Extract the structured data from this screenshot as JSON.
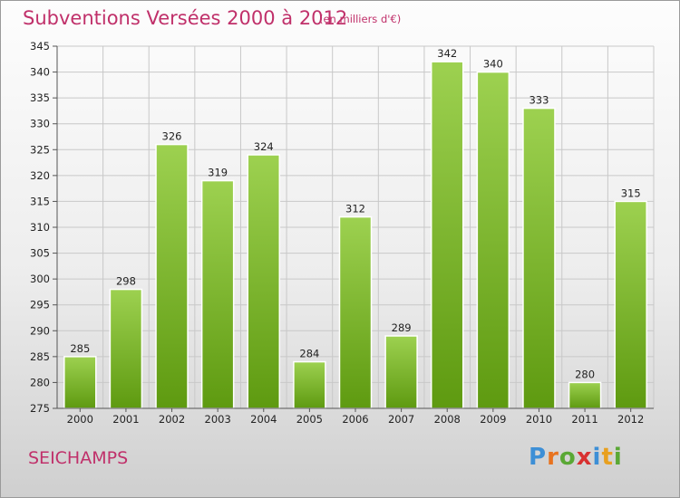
{
  "header": {
    "title": "Subventions Versées 2000 à 2012",
    "unit_note": "(en milliers d'€)"
  },
  "footer": {
    "commune": "SEICHAMPS",
    "brand_letters": [
      {
        "char": "P",
        "color": "#3d8fd6"
      },
      {
        "char": "r",
        "color": "#e8731f"
      },
      {
        "char": "o",
        "color": "#5aa835"
      },
      {
        "char": "x",
        "color": "#d83030"
      },
      {
        "char": "i",
        "color": "#3d8fd6"
      },
      {
        "char": "t",
        "color": "#e8a01f"
      },
      {
        "char": "i",
        "color": "#5aa835"
      }
    ]
  },
  "colors": {
    "accent": "#c0306a",
    "bar_top": "#9dd150",
    "bar_bottom": "#5e9a10",
    "grid": "#c8c8c8"
  },
  "chart_data": {
    "type": "bar",
    "title": "Subventions Versées 2000 à 2012",
    "subtitle": "(en milliers d'€)",
    "xlabel": "",
    "ylabel": "",
    "categories": [
      "2000",
      "2001",
      "2002",
      "2003",
      "2004",
      "2005",
      "2006",
      "2007",
      "2008",
      "2009",
      "2010",
      "2011",
      "2012"
    ],
    "values": [
      285,
      298,
      326,
      319,
      324,
      284,
      312,
      289,
      342,
      340,
      333,
      280,
      315
    ],
    "ylim": [
      275,
      345
    ],
    "ytick_step": 5,
    "grid": true,
    "legend": "none"
  }
}
